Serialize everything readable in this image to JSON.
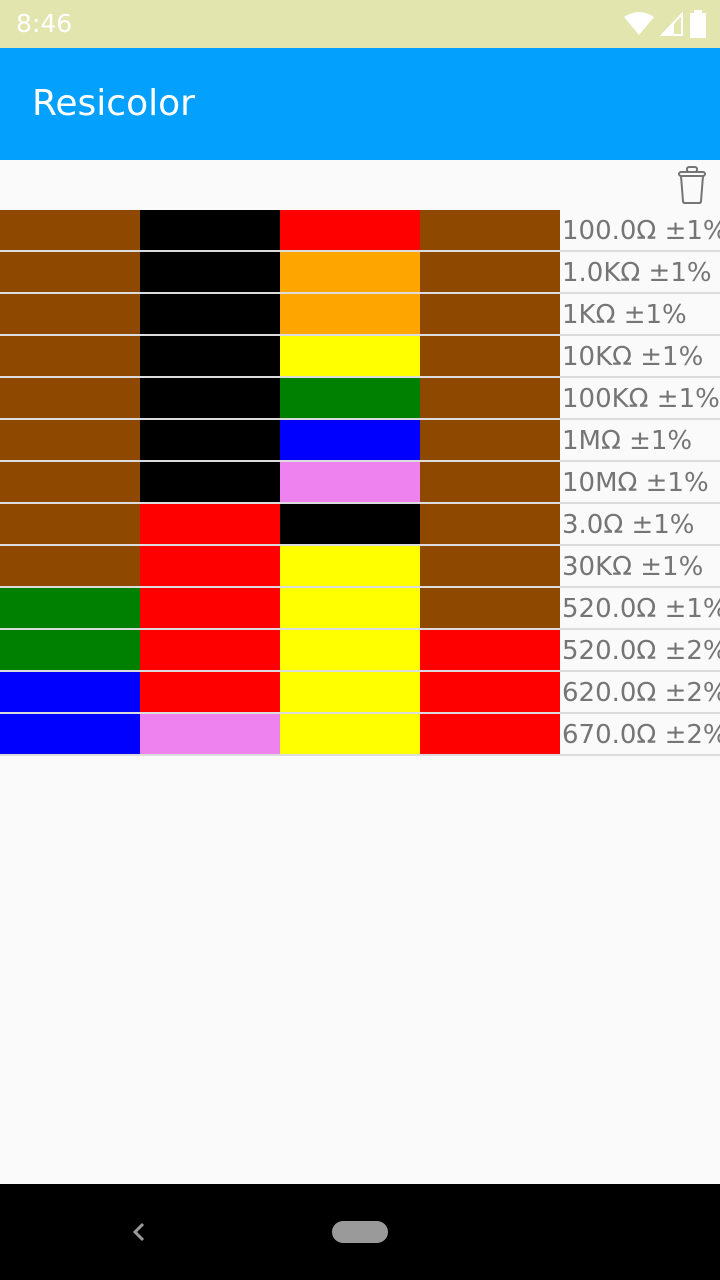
{
  "status_bar": {
    "time": "8:46",
    "icons": [
      "wifi-icon",
      "cell-signal-icon",
      "battery-icon"
    ]
  },
  "app_bar": {
    "title": "Resicolor",
    "background": "#03a0fe"
  },
  "toolbar": {
    "delete_icon": "trash-icon"
  },
  "colors": {
    "brown": "#8f4800",
    "black": "#000000",
    "red": "#ff0000",
    "orange": "#ffa500",
    "yellow": "#ffff00",
    "green": "#008000",
    "blue": "#0000ff",
    "violet": "#ee82ee"
  },
  "resistors": [
    {
      "bands": [
        "brown",
        "black",
        "red",
        "brown"
      ],
      "value": "100.0Ω ±1%"
    },
    {
      "bands": [
        "brown",
        "black",
        "orange",
        "brown"
      ],
      "value": "1.0KΩ ±1%"
    },
    {
      "bands": [
        "brown",
        "black",
        "orange",
        "brown"
      ],
      "value": "1KΩ ±1%"
    },
    {
      "bands": [
        "brown",
        "black",
        "yellow",
        "brown"
      ],
      "value": "10KΩ ±1%"
    },
    {
      "bands": [
        "brown",
        "black",
        "green",
        "brown"
      ],
      "value": "100KΩ ±1%"
    },
    {
      "bands": [
        "brown",
        "black",
        "blue",
        "brown"
      ],
      "value": "1MΩ ±1%"
    },
    {
      "bands": [
        "brown",
        "black",
        "violet",
        "brown"
      ],
      "value": "10MΩ ±1%"
    },
    {
      "bands": [
        "brown",
        "red",
        "black",
        "brown"
      ],
      "value": "3.0Ω ±1%"
    },
    {
      "bands": [
        "brown",
        "red",
        "yellow",
        "brown"
      ],
      "value": "30KΩ ±1%"
    },
    {
      "bands": [
        "green",
        "red",
        "yellow",
        "brown"
      ],
      "value": "520.0Ω ±1%"
    },
    {
      "bands": [
        "green",
        "red",
        "yellow",
        "red"
      ],
      "value": "520.0Ω ±2%"
    },
    {
      "bands": [
        "blue",
        "red",
        "yellow",
        "red"
      ],
      "value": "620.0Ω ±2%"
    },
    {
      "bands": [
        "blue",
        "violet",
        "yellow",
        "red"
      ],
      "value": "670.0Ω ±2%"
    }
  ],
  "nav_bar": {
    "back_icon": "back-icon",
    "home_icon": "home-pill-icon"
  }
}
